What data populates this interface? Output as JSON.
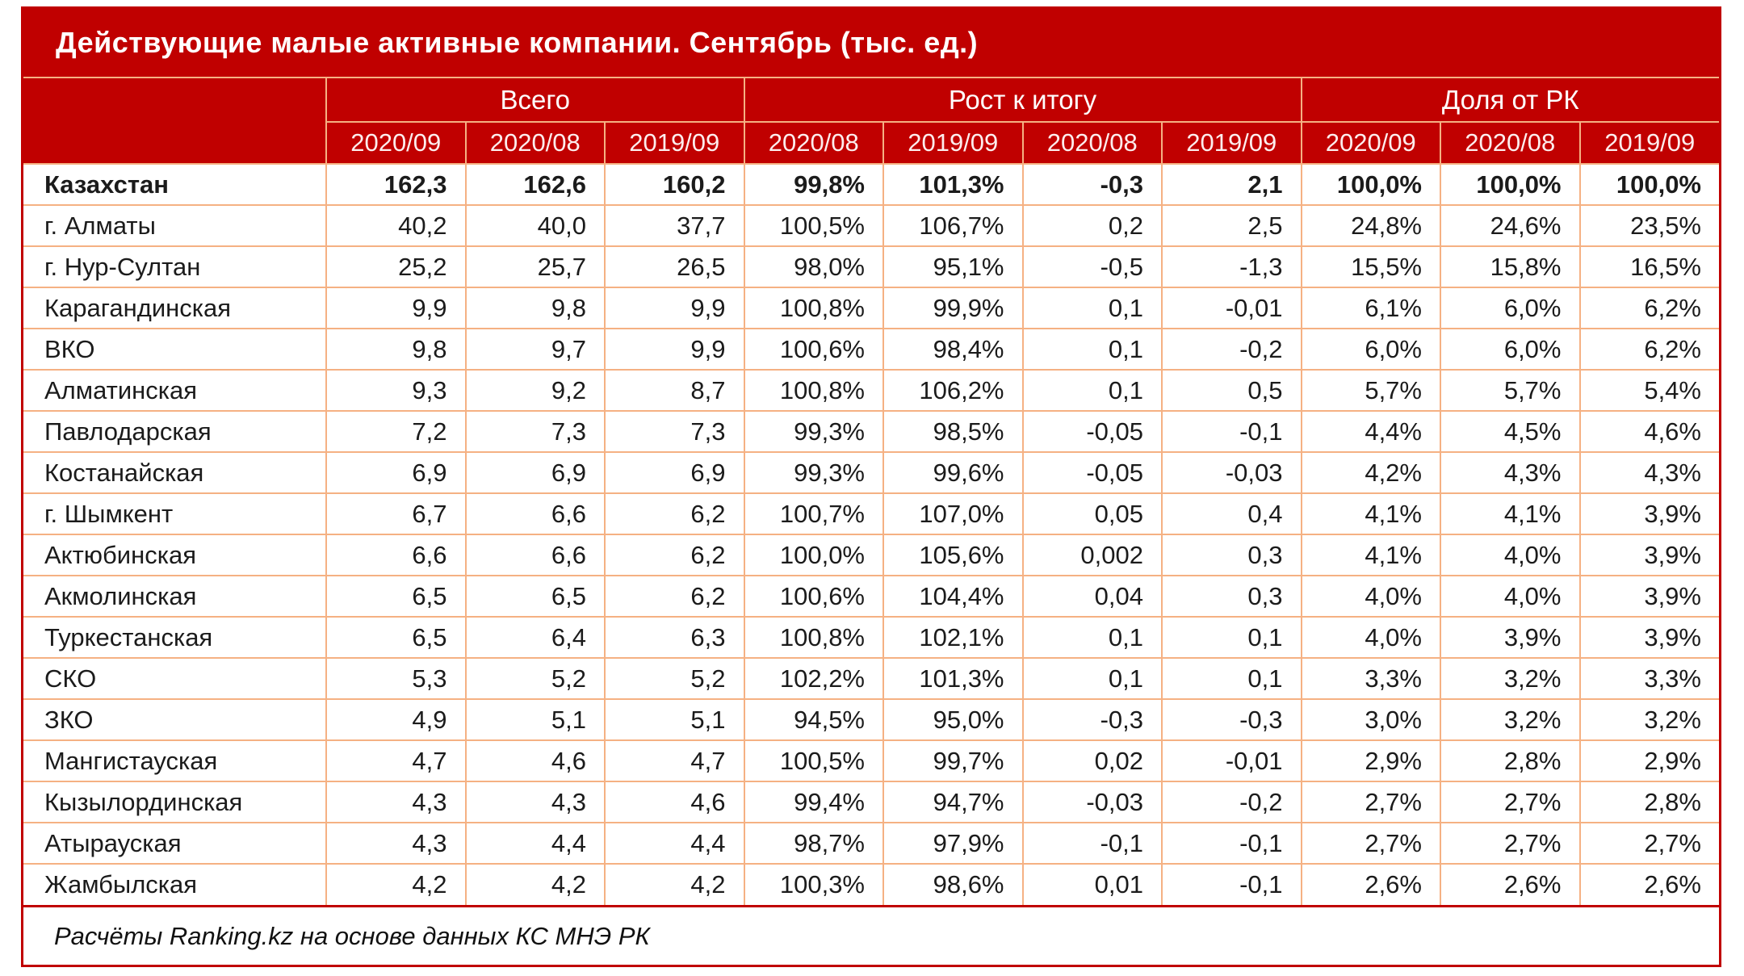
{
  "colors": {
    "red": "#C00000",
    "border_peach": "#F5B183",
    "text": "#1B1B1B",
    "header_text": "#FFFFFF",
    "bg": "#FFFFFF"
  },
  "chart_data": {
    "type": "table",
    "title": "Действующие малые активные компании. Сентябрь (тыс. ед.)",
    "column_groups": [
      {
        "label": "Всего",
        "colspan": 3
      },
      {
        "label": "Рост к итогу",
        "colspan": 4
      },
      {
        "label": "Доля от РК",
        "colspan": 3
      }
    ],
    "sub_columns": [
      "2020/09",
      "2020/08",
      "2019/09",
      "2020/08",
      "2019/09",
      "2020/08",
      "2019/09",
      "2020/09",
      "2020/08",
      "2019/09"
    ],
    "rows": [
      {
        "name": "Казахстан",
        "bold": true,
        "values": [
          "162,3",
          "162,6",
          "160,2",
          "99,8%",
          "101,3%",
          "-0,3",
          "2,1",
          "100,0%",
          "100,0%",
          "100,0%"
        ]
      },
      {
        "name": "г. Алматы",
        "values": [
          "40,2",
          "40,0",
          "37,7",
          "100,5%",
          "106,7%",
          "0,2",
          "2,5",
          "24,8%",
          "24,6%",
          "23,5%"
        ]
      },
      {
        "name": "г. Нур-Султан",
        "values": [
          "25,2",
          "25,7",
          "26,5",
          "98,0%",
          "95,1%",
          "-0,5",
          "-1,3",
          "15,5%",
          "15,8%",
          "16,5%"
        ]
      },
      {
        "name": "Карагандинская",
        "values": [
          "9,9",
          "9,8",
          "9,9",
          "100,8%",
          "99,9%",
          "0,1",
          "-0,01",
          "6,1%",
          "6,0%",
          "6,2%"
        ]
      },
      {
        "name": "ВКО",
        "values": [
          "9,8",
          "9,7",
          "9,9",
          "100,6%",
          "98,4%",
          "0,1",
          "-0,2",
          "6,0%",
          "6,0%",
          "6,2%"
        ]
      },
      {
        "name": "Алматинская",
        "values": [
          "9,3",
          "9,2",
          "8,7",
          "100,8%",
          "106,2%",
          "0,1",
          "0,5",
          "5,7%",
          "5,7%",
          "5,4%"
        ]
      },
      {
        "name": "Павлодарская",
        "values": [
          "7,2",
          "7,3",
          "7,3",
          "99,3%",
          "98,5%",
          "-0,05",
          "-0,1",
          "4,4%",
          "4,5%",
          "4,6%"
        ]
      },
      {
        "name": "Костанайская",
        "values": [
          "6,9",
          "6,9",
          "6,9",
          "99,3%",
          "99,6%",
          "-0,05",
          "-0,03",
          "4,2%",
          "4,3%",
          "4,3%"
        ]
      },
      {
        "name": "г. Шымкент",
        "values": [
          "6,7",
          "6,6",
          "6,2",
          "100,7%",
          "107,0%",
          "0,05",
          "0,4",
          "4,1%",
          "4,1%",
          "3,9%"
        ]
      },
      {
        "name": "Актюбинская",
        "values": [
          "6,6",
          "6,6",
          "6,2",
          "100,0%",
          "105,6%",
          "0,002",
          "0,3",
          "4,1%",
          "4,0%",
          "3,9%"
        ]
      },
      {
        "name": "Акмолинская",
        "values": [
          "6,5",
          "6,5",
          "6,2",
          "100,6%",
          "104,4%",
          "0,04",
          "0,3",
          "4,0%",
          "4,0%",
          "3,9%"
        ]
      },
      {
        "name": "Туркестанская",
        "values": [
          "6,5",
          "6,4",
          "6,3",
          "100,8%",
          "102,1%",
          "0,1",
          "0,1",
          "4,0%",
          "3,9%",
          "3,9%"
        ]
      },
      {
        "name": "СКО",
        "values": [
          "5,3",
          "5,2",
          "5,2",
          "102,2%",
          "101,3%",
          "0,1",
          "0,1",
          "3,3%",
          "3,2%",
          "3,3%"
        ]
      },
      {
        "name": "ЗКО",
        "values": [
          "4,9",
          "5,1",
          "5,1",
          "94,5%",
          "95,0%",
          "-0,3",
          "-0,3",
          "3,0%",
          "3,2%",
          "3,2%"
        ]
      },
      {
        "name": "Мангистауская",
        "values": [
          "4,7",
          "4,6",
          "4,7",
          "100,5%",
          "99,7%",
          "0,02",
          "-0,01",
          "2,9%",
          "2,8%",
          "2,9%"
        ]
      },
      {
        "name": "Кызылординская",
        "values": [
          "4,3",
          "4,3",
          "4,6",
          "99,4%",
          "94,7%",
          "-0,03",
          "-0,2",
          "2,7%",
          "2,7%",
          "2,8%"
        ]
      },
      {
        "name": "Атырауская",
        "values": [
          "4,3",
          "4,4",
          "4,4",
          "98,7%",
          "97,9%",
          "-0,1",
          "-0,1",
          "2,7%",
          "2,7%",
          "2,7%"
        ]
      },
      {
        "name": "Жамбылская",
        "values": [
          "4,2",
          "4,2",
          "4,2",
          "100,3%",
          "98,6%",
          "0,01",
          "-0,1",
          "2,6%",
          "2,6%",
          "2,6%"
        ]
      }
    ],
    "source_note": "Расчёты Ranking.kz на основе данных КС МНЭ РК"
  }
}
